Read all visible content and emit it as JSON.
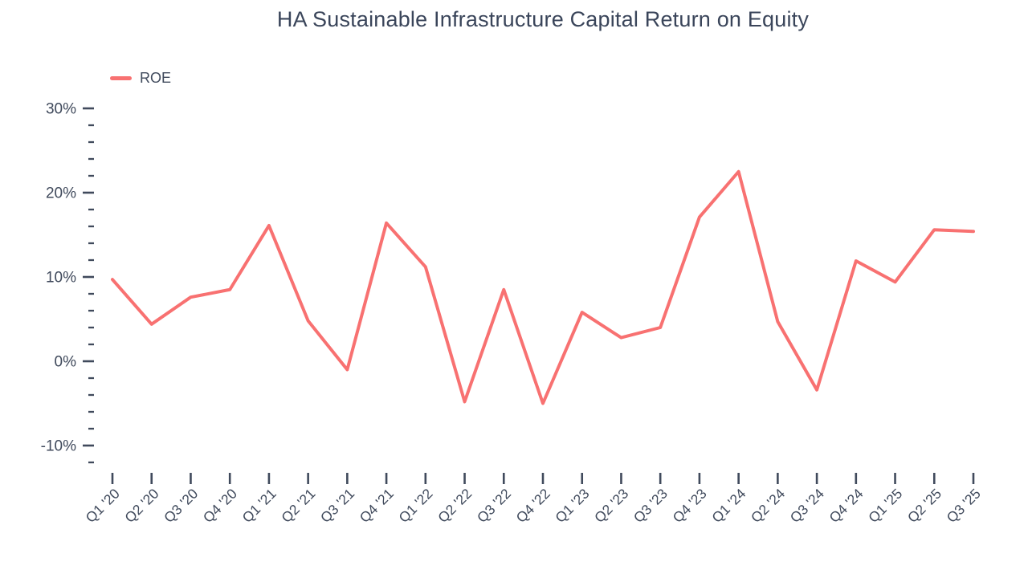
{
  "title": "HA Sustainable Infrastructure Capital Return on Equity",
  "legend": {
    "label": "ROE"
  },
  "colors": {
    "line": "#F87171",
    "axis_text": "#404A5C",
    "title_text": "#3A455A",
    "background": "#FFFFFF"
  },
  "chart_data": {
    "type": "line",
    "title": "HA Sustainable Infrastructure Capital Return on Equity",
    "xlabel": "",
    "ylabel": "",
    "legend_position": "top-left",
    "grid": false,
    "categories": [
      "Q1 '20",
      "Q2 '20",
      "Q3 '20",
      "Q4 '20",
      "Q1 '21",
      "Q2 '21",
      "Q3 '21",
      "Q4 '21",
      "Q1 '22",
      "Q2 '22",
      "Q3 '22",
      "Q4 '22",
      "Q1 '23",
      "Q2 '23",
      "Q3 '23",
      "Q4 '23",
      "Q1 '24",
      "Q2 '24",
      "Q3 '24",
      "Q4 '24",
      "Q1 '25",
      "Q2 '25",
      "Q3 '25"
    ],
    "series": [
      {
        "name": "ROE",
        "values": [
          9.7,
          4.4,
          7.6,
          8.5,
          16.1,
          4.8,
          -1.0,
          16.4,
          11.2,
          -4.8,
          8.5,
          -5.0,
          5.8,
          2.8,
          4.0,
          17.1,
          22.5,
          4.7,
          -3.4,
          11.9,
          9.4,
          15.6,
          15.4
        ]
      }
    ],
    "y_axis": {
      "unit": "%",
      "ylim": [
        -12,
        30
      ],
      "major_ticks": [
        30,
        20,
        10,
        0,
        -10
      ],
      "minor_tick_step": 2
    }
  }
}
